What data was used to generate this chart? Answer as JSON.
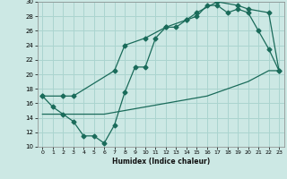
{
  "xlabel": "Humidex (Indice chaleur)",
  "background_color": "#cce8e4",
  "grid_color": "#aad4cf",
  "line_color": "#1a6b5a",
  "xlim": [
    -0.5,
    23.5
  ],
  "ylim": [
    10,
    30
  ],
  "xticks": [
    0,
    1,
    2,
    3,
    4,
    5,
    6,
    7,
    8,
    9,
    10,
    11,
    12,
    13,
    14,
    15,
    16,
    17,
    18,
    19,
    20,
    21,
    22,
    23
  ],
  "yticks": [
    10,
    12,
    14,
    16,
    18,
    20,
    22,
    24,
    26,
    28,
    30
  ],
  "curve1_x": [
    0,
    1,
    2,
    3,
    4,
    5,
    6,
    7,
    8,
    9,
    10,
    11,
    12,
    13,
    14,
    15,
    16,
    17,
    18,
    19,
    20,
    21,
    22,
    23
  ],
  "curve1_y": [
    17,
    15.5,
    14.5,
    13.5,
    11.5,
    11.5,
    10.5,
    13,
    17.5,
    21,
    21,
    25,
    26.5,
    26.5,
    27.5,
    28,
    29.5,
    29.5,
    28.5,
    29,
    28.5,
    26,
    23.5,
    20.5
  ],
  "curve2_x": [
    0,
    2,
    3,
    7,
    8,
    10,
    12,
    14,
    15,
    17,
    19,
    20,
    22,
    23
  ],
  "curve2_y": [
    17,
    17,
    17,
    20.5,
    24,
    25,
    26.5,
    27.5,
    28.5,
    30,
    29.5,
    29,
    28.5,
    20.5
  ],
  "curve3_x": [
    0,
    2,
    4,
    6,
    8,
    10,
    12,
    14,
    16,
    18,
    20,
    22,
    23
  ],
  "curve3_y": [
    14.5,
    14.5,
    14.5,
    14.5,
    15,
    15.5,
    16,
    16.5,
    17,
    18,
    19,
    20.5,
    20.5
  ]
}
